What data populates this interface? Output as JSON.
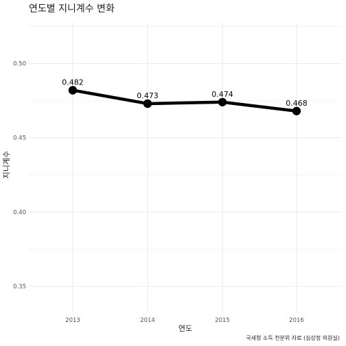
{
  "chart_data": {
    "type": "line",
    "title": "연도별 지니계수 변화",
    "xlabel": "연도",
    "ylabel": "지니계수",
    "caption": "국세청 소득 천분위 자료 (심상정 의원실)",
    "x": [
      "2013",
      "2014",
      "2015",
      "2016"
    ],
    "series": [
      {
        "values": [
          0.482,
          0.473,
          0.474,
          0.468
        ],
        "labels": [
          "0.482",
          "0.473",
          "0.474",
          "0.468"
        ]
      }
    ],
    "yticks": [
      "0.35",
      "0.40",
      "0.45",
      "0.50"
    ],
    "ylim": [
      0.3325,
      0.5275
    ],
    "grid": true,
    "line_color": "#000000",
    "grid_color": "#ebebeb"
  }
}
